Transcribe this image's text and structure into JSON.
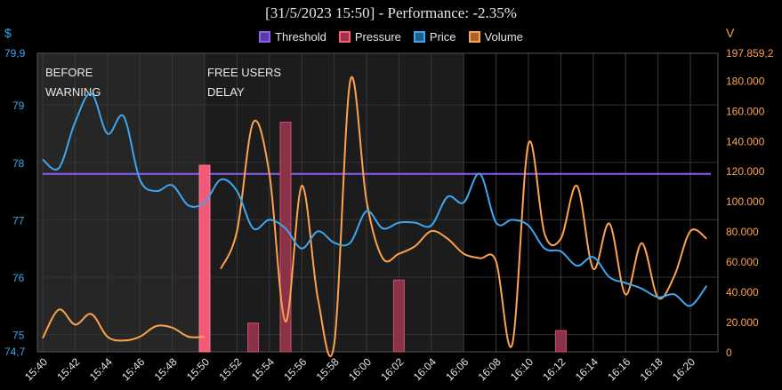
{
  "chart_data": {
    "type": "line",
    "title": "[31/5/2023 15:50] - Performance: -2.35%",
    "left_axis_unit": "$",
    "right_axis_unit": "V",
    "x_ticks": [
      "15:40",
      "15:42",
      "15:44",
      "15:46",
      "15:48",
      "15:50",
      "15:52",
      "15:54",
      "15:56",
      "15:58",
      "16:00",
      "16:02",
      "16:04",
      "16:06",
      "16:08",
      "16:10",
      "16:12",
      "16:14",
      "16:16",
      "16:18",
      "16:20"
    ],
    "x_range_minutes": [
      0,
      41.5
    ],
    "y_left": {
      "ticks": [
        75,
        76,
        77,
        78,
        79
      ],
      "tick_labels": [
        "75",
        "76",
        "77",
        "78",
        "79"
      ],
      "min": 74.7,
      "max": 79.9,
      "min_label": "74,7",
      "max_label": "79,9"
    },
    "y_right": {
      "ticks": [
        0,
        20000,
        40000,
        60000,
        80000,
        100000,
        120000,
        140000,
        160000,
        180000
      ],
      "tick_labels": [
        "0",
        "20.000",
        "40.000",
        "60.000",
        "80.000",
        "100.000",
        "120.000",
        "140.000",
        "160.000",
        "180.000"
      ],
      "min": 0,
      "max": 197859.2,
      "max_label": "197.859,2"
    },
    "annotations": [
      {
        "lines": [
          "BEFORE",
          "WARNING"
        ],
        "minute_from": 0,
        "minute_to": 10
      },
      {
        "lines": [
          "FREE USERS",
          "DELAY"
        ],
        "minute_from": 10,
        "minute_to": 26
      }
    ],
    "threshold_value": 77.8,
    "series": [
      {
        "name": "Threshold",
        "color": "#8b5cf6",
        "axis": "left"
      },
      {
        "name": "Pressure",
        "color": "#ff5a7a",
        "axis": "left",
        "bars": [
          {
            "minute": 10,
            "value": 77.95,
            "highlight": true
          },
          {
            "minute": 13,
            "value": 75.2
          },
          {
            "minute": 15,
            "value": 78.7
          },
          {
            "minute": 22,
            "value": 75.95
          },
          {
            "minute": 32,
            "value": 75.07
          }
        ]
      },
      {
        "name": "Price",
        "color": "#3ea6f0",
        "axis": "left",
        "x": [
          0,
          1,
          2,
          3,
          4,
          5,
          6,
          7,
          8,
          9,
          10,
          11,
          12,
          13,
          14,
          15,
          16,
          17,
          18,
          19,
          20,
          21,
          22,
          23,
          24,
          25,
          26,
          27,
          28,
          29,
          30,
          31,
          32,
          33,
          34,
          35,
          36,
          37,
          38,
          39,
          40,
          41
        ],
        "values": [
          78.05,
          77.9,
          78.7,
          79.2,
          78.5,
          78.8,
          77.7,
          77.5,
          77.6,
          77.25,
          77.3,
          77.7,
          77.5,
          76.85,
          77.0,
          76.85,
          76.5,
          76.8,
          76.6,
          76.6,
          77.15,
          76.85,
          76.95,
          76.95,
          76.9,
          77.4,
          77.3,
          77.8,
          76.95,
          77.0,
          76.9,
          76.5,
          76.45,
          76.2,
          76.35,
          76.0,
          75.9,
          75.8,
          75.65,
          75.7,
          75.5,
          75.85
        ]
      },
      {
        "name": "Volume",
        "color": "#ffa24d",
        "axis": "right",
        "segments": [
          {
            "x": [
              0,
              1,
              2,
              3,
              4,
              5,
              6,
              7,
              8,
              9,
              10
            ],
            "values": [
              9000,
              28000,
              18000,
              25000,
              10000,
              7500,
              10000,
              17000,
              16000,
              10000,
              10000
            ]
          },
          {
            "x": [
              11,
              12,
              13,
              14,
              15,
              16,
              17,
              18,
              19,
              20,
              21,
              22,
              23,
              24,
              25,
              26,
              27,
              28,
              29,
              30,
              31,
              32,
              33,
              34,
              35,
              36,
              37,
              38,
              39,
              40,
              41
            ],
            "values": [
              55000,
              80000,
              152000,
              118000,
              20000,
              110000,
              35000,
              5000,
              180000,
              100000,
              62000,
              65000,
              70000,
              80000,
              75000,
              65000,
              62000,
              60000,
              5000,
              138000,
              78000,
              75000,
              110000,
              55000,
              85000,
              38000,
              72000,
              36000,
              50000,
              80000,
              75000
            ]
          }
        ]
      }
    ]
  }
}
